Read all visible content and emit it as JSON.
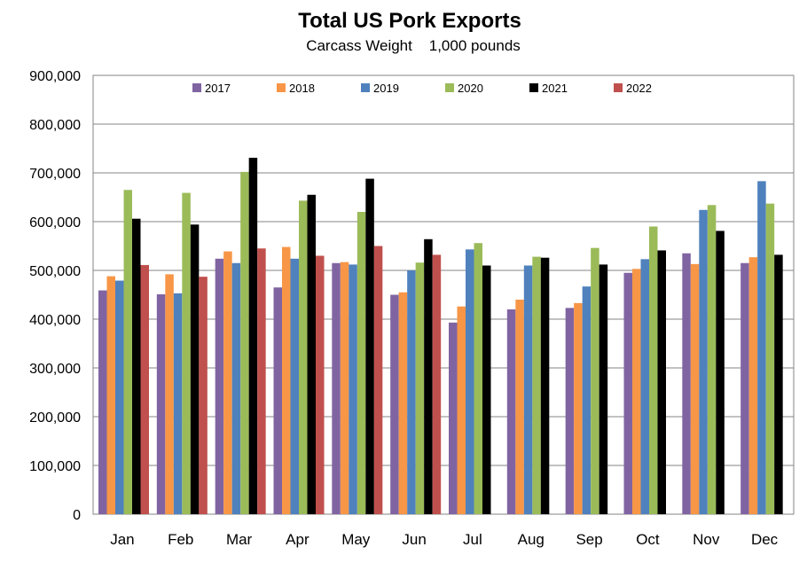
{
  "chart_data": {
    "type": "bar",
    "title": "Total US Pork Exports",
    "subtitle": "Carcass Weight    1,000 pounds",
    "xlabel": "",
    "ylabel": "",
    "ylim": [
      0,
      900000
    ],
    "y_ticks": [
      0,
      100000,
      200000,
      300000,
      400000,
      500000,
      600000,
      700000,
      800000,
      900000
    ],
    "y_tick_labels": [
      "0",
      "100,000",
      "200,000",
      "300,000",
      "400,000",
      "500,000",
      "600,000",
      "700,000",
      "800,000",
      "900,000"
    ],
    "grid": true,
    "legend_position": "top",
    "categories": [
      "Jan",
      "Feb",
      "Mar",
      "Apr",
      "May",
      "Jun",
      "Jul",
      "Aug",
      "Sep",
      "Oct",
      "Nov",
      "Dec"
    ],
    "series": [
      {
        "name": "2017",
        "color": "#8064A2",
        "values": [
          459000,
          451000,
          524000,
          465000,
          515000,
          450000,
          393000,
          420000,
          423000,
          495000,
          535000,
          515000
        ]
      },
      {
        "name": "2018",
        "color": "#F79646",
        "values": [
          488000,
          492000,
          539000,
          548000,
          517000,
          455000,
          426000,
          440000,
          433000,
          503000,
          513000,
          527000
        ]
      },
      {
        "name": "2019",
        "color": "#4F81BD",
        "values": [
          479000,
          453000,
          515000,
          524000,
          512000,
          500000,
          543000,
          510000,
          467000,
          523000,
          624000,
          683000
        ]
      },
      {
        "name": "2020",
        "color": "#9BBB59",
        "values": [
          665000,
          659000,
          702000,
          643000,
          620000,
          516000,
          556000,
          528000,
          546000,
          590000,
          634000,
          637000
        ]
      },
      {
        "name": "2021",
        "color": "#000000",
        "values": [
          606000,
          594000,
          731000,
          655000,
          688000,
          564000,
          510000,
          526000,
          512000,
          541000,
          581000,
          532000
        ]
      },
      {
        "name": "2022",
        "color": "#C0504D",
        "values": [
          511000,
          487000,
          545000,
          530000,
          550000,
          532000,
          null,
          null,
          null,
          null,
          null,
          null
        ]
      }
    ]
  }
}
